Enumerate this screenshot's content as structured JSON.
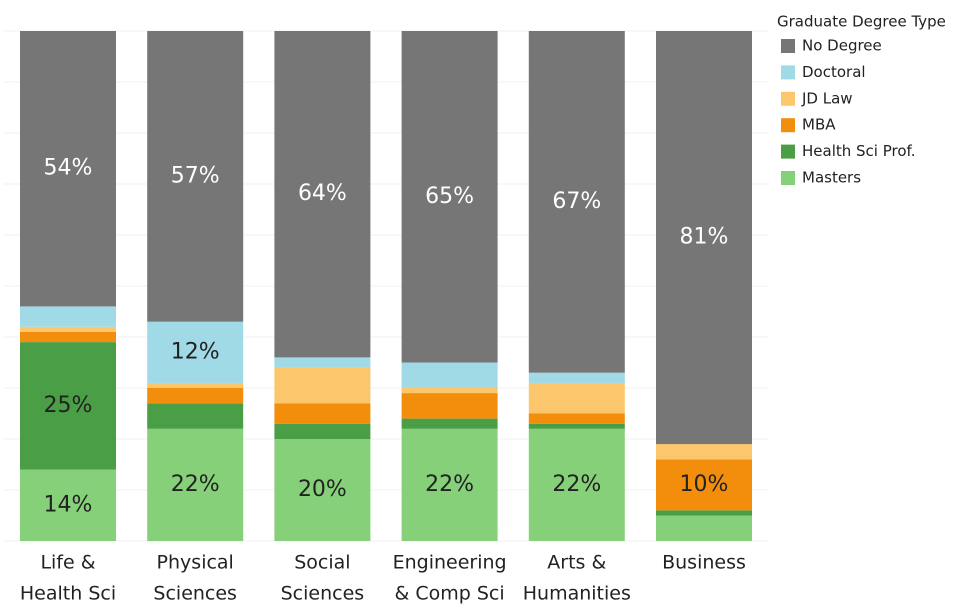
{
  "chart_data": {
    "type": "stacked_bar",
    "legend_title": "Graduate Degree Type",
    "legend": "right",
    "categories": [
      [
        "Life &",
        "Health Sci"
      ],
      [
        "Physical",
        "Sciences"
      ],
      [
        "Social",
        "Sciences"
      ],
      [
        "Engineering",
        "& Comp Sci"
      ],
      [
        "Arts &",
        "Humanities"
      ],
      [
        "Business"
      ]
    ],
    "ylim": [
      0,
      100
    ],
    "series": [
      {
        "name": "Masters",
        "color": "#86d07a",
        "values": [
          14,
          22,
          20,
          22,
          22,
          5
        ],
        "value_labels": [
          "14%",
          "22%",
          "20%",
          "22%",
          "22%",
          null
        ]
      },
      {
        "name": "Health Sci Prof.",
        "color": "#4a9e46",
        "values": [
          25,
          5,
          3,
          2,
          1,
          1
        ],
        "value_labels": [
          "25%",
          null,
          null,
          null,
          null,
          null
        ]
      },
      {
        "name": "MBA",
        "color": "#f28e0c",
        "values": [
          2,
          3,
          4,
          5,
          2,
          10
        ],
        "value_labels": [
          null,
          null,
          null,
          null,
          null,
          "10%"
        ]
      },
      {
        "name": "JD Law",
        "color": "#fcc66c",
        "values": [
          1,
          1,
          7,
          1,
          6,
          3
        ],
        "value_labels": [
          null,
          null,
          null,
          null,
          null,
          null
        ]
      },
      {
        "name": "Doctoral",
        "color": "#a0dae6",
        "values": [
          4,
          12,
          2,
          5,
          2,
          0
        ],
        "value_labels": [
          null,
          "12%",
          null,
          null,
          null,
          null
        ]
      },
      {
        "name": "No Degree",
        "color": "#767676",
        "values": [
          54,
          57,
          64,
          65,
          67,
          81
        ],
        "value_labels": [
          "54%",
          "57%",
          "64%",
          "65%",
          "67%",
          "81%"
        ]
      }
    ]
  }
}
